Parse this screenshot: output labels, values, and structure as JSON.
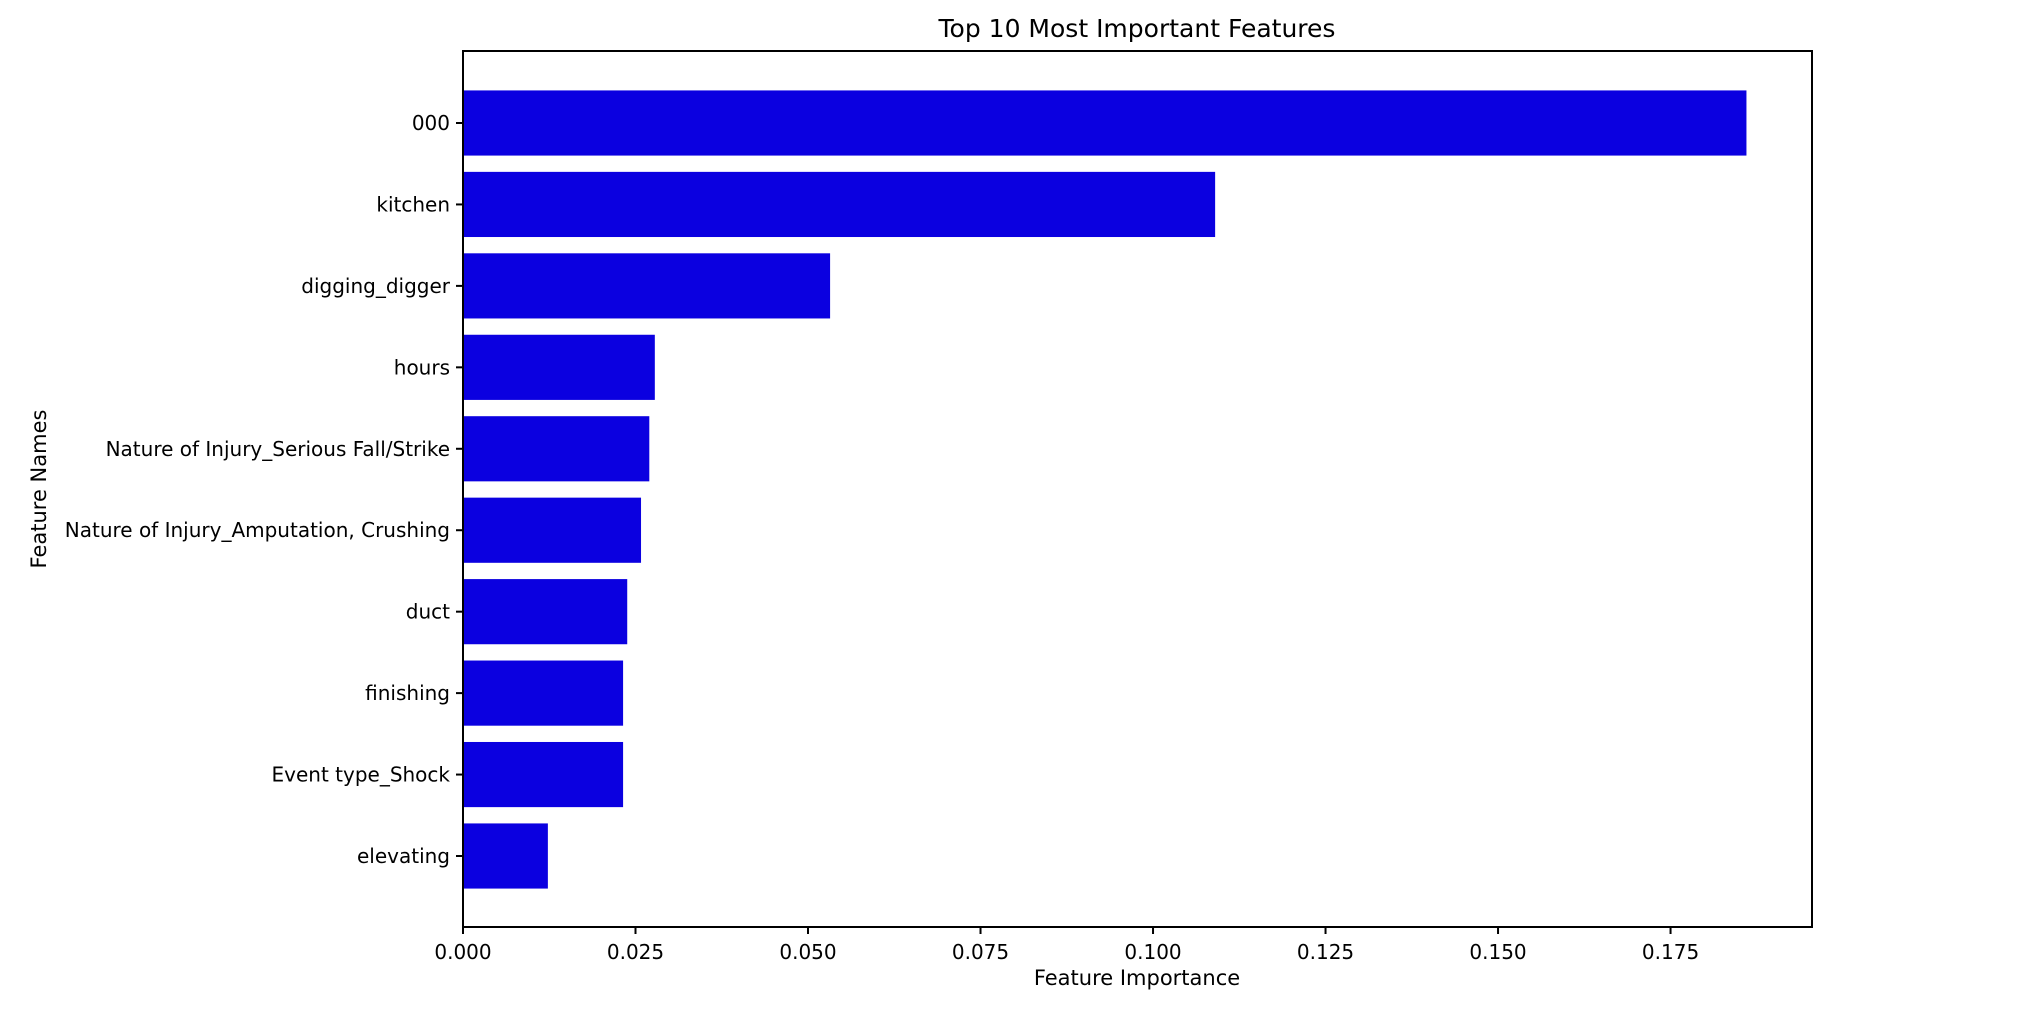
{
  "chart_data": {
    "type": "bar",
    "orientation": "horizontal",
    "title": "Top 10 Most Important Features",
    "xlabel": "Feature Importance",
    "ylabel": "Feature Names",
    "categories": [
      "000",
      "kitchen",
      "digging_digger",
      "hours",
      "Nature of Injury_Serious Fall/Strike",
      "Nature of Injury_Amputation, Crushing",
      "duct",
      "finishing",
      "Event type_Shock",
      "elevating"
    ],
    "values": [
      0.186,
      0.109,
      0.0532,
      0.0278,
      0.027,
      0.0258,
      0.0238,
      0.0232,
      0.0232,
      0.0123
    ],
    "xlim": [
      0,
      0.1955
    ],
    "xticks": [
      0.0,
      0.025,
      0.05,
      0.075,
      0.1,
      0.125,
      0.15,
      0.175
    ],
    "xtick_labels": [
      "0.000",
      "0.025",
      "0.050",
      "0.075",
      "0.100",
      "0.125",
      "0.150",
      "0.175"
    ],
    "grid": false,
    "legend": "none",
    "bar_color": "#0b00e0"
  }
}
